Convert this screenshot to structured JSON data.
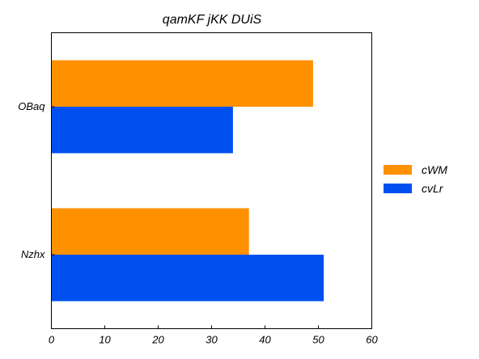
{
  "chart_data": {
    "type": "bar",
    "orientation": "horizontal",
    "title": "qamKF jKK DUiS",
    "xlabel": "",
    "ylabel": "",
    "categories": [
      "OBaq",
      "Nzhx"
    ],
    "series": [
      {
        "name": "cWM",
        "values": [
          49,
          37
        ],
        "color": "#ff9000"
      },
      {
        "name": "cvLr",
        "values": [
          34,
          51
        ],
        "color": "#0050f0"
      }
    ],
    "xlim": [
      0,
      60
    ],
    "xticks": [
      0,
      10,
      20,
      30,
      40,
      50,
      60
    ],
    "grid": false,
    "legend_position": "right"
  }
}
